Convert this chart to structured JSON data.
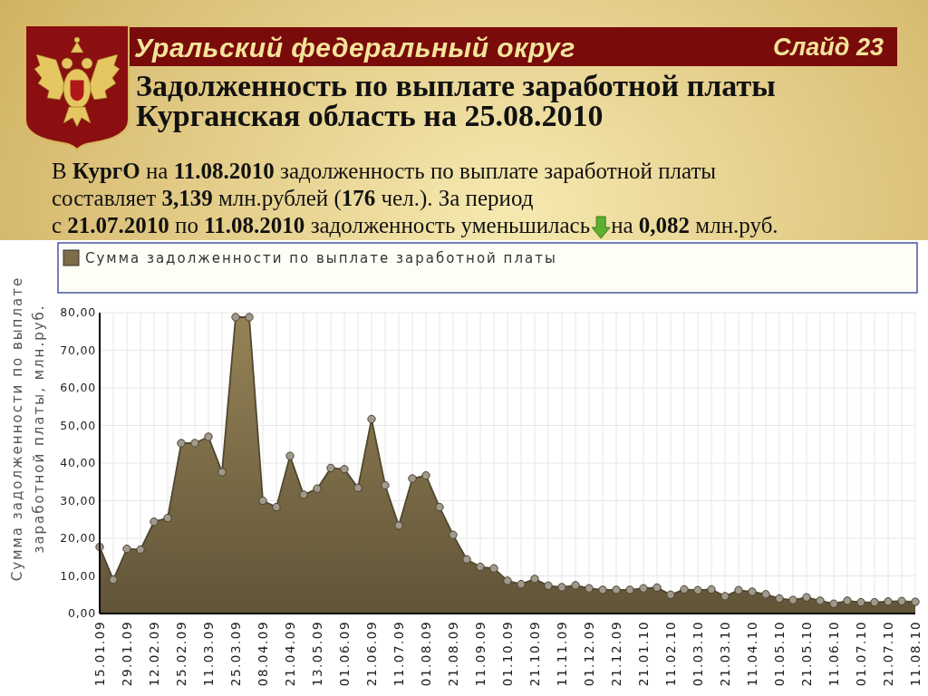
{
  "chart_data": {
    "type": "area",
    "title": "Задолженность по выплате заработной платы\nКурганская область на 25.08.2010",
    "ylabel": "Сумма задолженности по выплате заработной платы, млн.руб.",
    "annotations": [
      "Уральский федеральный округ",
      "Слайд 23",
      "В КургО на 11.08.2010 задолженность по выплате заработной платы",
      "составляет 3,139 млн.рублей (176 чел.). За период",
      "с 21.07.2010 по 11.08.2010 задолженность уменьшилась",
      "на 0,082 млн.руб."
    ],
    "categories": [
      "15.01.09",
      null,
      "29.01.09",
      null,
      "12.02.09",
      null,
      "25.02.09",
      null,
      "11.03.09",
      null,
      "25.03.09",
      null,
      "08.04.09",
      null,
      "21.04.09",
      null,
      "13.05.09",
      null,
      "01.06.09",
      null,
      "21.06.09",
      null,
      "11.07.09",
      null,
      "01.08.09",
      null,
      "21.08.09",
      null,
      "11.09.09",
      null,
      "01.10.09",
      null,
      "21.10.09",
      null,
      "11.11.09",
      null,
      "01.12.09",
      null,
      "21.12.09",
      null,
      "21.01.10",
      null,
      "11.02.10",
      null,
      "01.03.10",
      null,
      "21.03.10",
      null,
      "11.04.10",
      null,
      "01.05.10",
      null,
      "21.05.10",
      null,
      "11.06.10",
      null,
      "01.07.10",
      null,
      "21.07.10",
      null,
      "11.08.10"
    ],
    "series": [
      {
        "name": "Сумма задолженности по выплате заработной платы",
        "color": "#7d6d48",
        "values": [
          17.7,
          9.0,
          17.2,
          17.0,
          24.4,
          25.4,
          45.3,
          45.3,
          47.0,
          37.6,
          78.8,
          78.8,
          30.0,
          28.3,
          41.9,
          31.6,
          33.2,
          38.7,
          38.4,
          33.4,
          51.7,
          34.1,
          23.4,
          35.9,
          36.7,
          28.3,
          20.9,
          14.4,
          12.4,
          12.0,
          8.7,
          7.8,
          9.2,
          7.4,
          7.0,
          7.5,
          6.7,
          6.3,
          6.3,
          6.3,
          6.7,
          6.9,
          5.0,
          6.4,
          6.2,
          6.4,
          4.6,
          6.2,
          5.8,
          5.1,
          4.0,
          3.6,
          4.3,
          3.4,
          2.6,
          3.4,
          3.0,
          3.0,
          3.2,
          3.3,
          3.1
        ]
      }
    ],
    "ylim": [
      0,
      80
    ],
    "yticks": [
      {
        "value": 0,
        "label": "0,00"
      },
      {
        "value": 10,
        "label": "10,00"
      },
      {
        "value": 20,
        "label": "20,00"
      },
      {
        "value": 30,
        "label": "30,00"
      },
      {
        "value": 40,
        "label": "40,00"
      },
      {
        "value": 50,
        "label": "50,00"
      },
      {
        "value": 60,
        "label": "60,00"
      },
      {
        "value": 70,
        "label": "70,00"
      },
      {
        "value": 80,
        "label": "80,00"
      }
    ],
    "grid": true,
    "legend": "top",
    "marker": "circle"
  }
}
